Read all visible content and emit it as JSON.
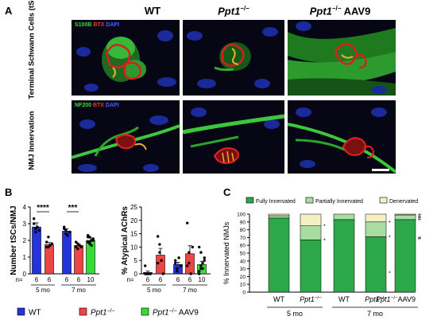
{
  "panel_a": {
    "letter": "A",
    "columns": [
      {
        "name": "WT",
        "sup": ""
      },
      {
        "name": "Ppt1",
        "sup": "−/−"
      },
      {
        "name": "Ppt1",
        "sup": "−/−",
        "suffix": " AAV9"
      }
    ],
    "row_labels": [
      "Terminal Schwann Cells (tSCs)",
      "NMJ Innervation"
    ],
    "row1_stain": {
      "s1": "S100B",
      "s2": "BTX",
      "s3": "DAPI"
    },
    "row2_stain": {
      "s1": "NF200",
      "s2": "BTX",
      "s3": "DAPI"
    }
  },
  "panel_b": {
    "letter": "B",
    "n_prefix": "n=",
    "ages": [
      "5 mo",
      "7 mo"
    ],
    "legend": [
      {
        "name": "WT",
        "sup": "",
        "suffix": "",
        "color": "#2233dd"
      },
      {
        "name": "Ppt1",
        "sup": "−/−",
        "suffix": "",
        "color": "#ee4444"
      },
      {
        "name": "Ppt1",
        "sup": "−/−",
        "suffix": " AAV9",
        "color": "#33dd33"
      }
    ]
  },
  "panel_c": {
    "letter": "C",
    "legend": [
      {
        "label": "Fully Innervated",
        "color": "#2ca84a"
      },
      {
        "label": "Partially Innervated",
        "color": "#a8dca0"
      },
      {
        "label": "Denervated",
        "color": "#f4f0c4"
      }
    ],
    "ages": [
      "5 mo",
      "7 mo"
    ]
  },
  "chart_data": [
    {
      "type": "bar",
      "ylabel": "Number tSCs/NMJ",
      "ylim": [
        0,
        4
      ],
      "yticks": [
        0,
        1,
        2,
        3,
        4
      ],
      "grid": false,
      "series": [
        {
          "name": "WT",
          "color": "#2233dd",
          "values": [
            2.8,
            2.55
          ],
          "errors": [
            0.25,
            0.15
          ]
        },
        {
          "name": "Ppt1−/−",
          "color": "#ee4444",
          "values": [
            1.75,
            1.7
          ],
          "errors": [
            0.12,
            0.08
          ]
        },
        {
          "name": "Ppt1−/− AAV9",
          "color": "#33dd33",
          "values": [
            null,
            2.0
          ],
          "errors": [
            null,
            0.15
          ]
        }
      ],
      "bars": [
        {
          "group": "5 mo",
          "series": "WT",
          "value": 2.8,
          "n": "6"
        },
        {
          "group": "5 mo",
          "series": "Ppt1−/−",
          "value": 1.75,
          "n": "6"
        },
        {
          "group": "7 mo",
          "series": "WT",
          "value": 2.55,
          "n": "6"
        },
        {
          "group": "7 mo",
          "series": "Ppt1−/−",
          "value": 1.7,
          "n": "6"
        },
        {
          "group": "7 mo",
          "series": "Ppt1−/− AAV9",
          "value": 2.0,
          "n": "10"
        }
      ],
      "points": [
        [
          3.3,
          2.7,
          2.8,
          2.6,
          3.0,
          2.5
        ],
        [
          1.9,
          1.6,
          1.7,
          1.8,
          1.6,
          2.2
        ],
        [
          2.8,
          2.6,
          2.3,
          2.5,
          2.7,
          2.4
        ],
        [
          1.6,
          1.8,
          1.7,
          1.6,
          1.9,
          1.5
        ],
        [
          2.3,
          1.8,
          2.0,
          2.1,
          1.9,
          2.2,
          1.7,
          2.0,
          2.2,
          1.9
        ]
      ],
      "significance": [
        {
          "label": "****",
          "between": [
            "5 mo WT",
            "5 mo Ppt1−/−"
          ]
        },
        {
          "label": "***",
          "between": [
            "7 mo WT",
            "7 mo Ppt1−/−"
          ]
        }
      ]
    },
    {
      "type": "bar",
      "ylabel": "% Atypical AChRs",
      "ylim": [
        0,
        25
      ],
      "yticks": [
        0,
        5,
        10,
        15,
        20,
        25
      ],
      "grid": false,
      "series": [
        {
          "name": "WT",
          "color": "#2233dd",
          "values": [
            0.5,
            3.5
          ],
          "errors": [
            0.5,
            0.8
          ]
        },
        {
          "name": "Ppt1−/−",
          "color": "#ee4444",
          "values": [
            7.0,
            7.5
          ],
          "errors": [
            2.5,
            3.0
          ]
        },
        {
          "name": "Ppt1−/− AAV9",
          "color": "#33dd33",
          "values": [
            null,
            3.5
          ],
          "errors": [
            null,
            1.2
          ]
        }
      ],
      "bars": [
        {
          "group": "5 mo",
          "series": "WT",
          "value": 0.5,
          "n": "6"
        },
        {
          "group": "5 mo",
          "series": "Ppt1−/−",
          "value": 7.0,
          "n": "6"
        },
        {
          "group": "7 mo",
          "series": "WT",
          "value": 3.5,
          "n": "6"
        },
        {
          "group": "7 mo",
          "series": "Ppt1−/−",
          "value": 7.5,
          "n": "6"
        },
        {
          "group": "7 mo",
          "series": "Ppt1−/− AAV9",
          "value": 3.5,
          "n": "10"
        }
      ],
      "points": [
        [
          0,
          0,
          0,
          0,
          3,
          0
        ],
        [
          14,
          8,
          5,
          0,
          4,
          11
        ],
        [
          4,
          2,
          6,
          3,
          5,
          1
        ],
        [
          19,
          4,
          0,
          10,
          3,
          8
        ],
        [
          10,
          2,
          4,
          6,
          0,
          3,
          2,
          5,
          1,
          8
        ]
      ],
      "significance": []
    },
    {
      "type": "bar",
      "stacked": true,
      "ylabel": "% Innervated NMJs",
      "ylim": [
        0,
        100
      ],
      "yticks": [
        0,
        10,
        20,
        30,
        40,
        50,
        60,
        70,
        80,
        90,
        100
      ],
      "grid": false,
      "categories": [
        "WT",
        "Ppt1−/−",
        "WT",
        "Ppt1−/−",
        "Ppt1−/− AAV9"
      ],
      "category_labels": [
        {
          "name": "WT",
          "sup": "",
          "suffix": ""
        },
        {
          "name": "Ppt1",
          "sup": "−/−",
          "suffix": ""
        },
        {
          "name": "WT",
          "sup": "",
          "suffix": ""
        },
        {
          "name": "Ppt1",
          "sup": "−/−",
          "suffix": ""
        },
        {
          "name": "Ppt1",
          "sup": "−/−",
          "suffix": "AAV9"
        }
      ],
      "series": [
        {
          "name": "Fully Innervated",
          "color": "#2ca84a",
          "values": [
            95,
            67,
            93,
            71,
            93
          ]
        },
        {
          "name": "Partially Innervated",
          "color": "#a8dca0",
          "values": [
            3,
            18,
            7,
            19,
            6
          ]
        },
        {
          "name": "Denervated",
          "color": "#f4f0c4",
          "values": [
            2,
            15,
            0,
            10,
            1
          ]
        }
      ],
      "marks": [
        {
          "category": 1,
          "symbol": "*",
          "values": [
            67,
            85
          ]
        },
        {
          "category": 3,
          "symbol": "*",
          "values": [
            25,
            71,
            90
          ]
        },
        {
          "category": 4,
          "symbol": "#",
          "values": [
            70,
            95,
            99
          ]
        }
      ]
    }
  ]
}
